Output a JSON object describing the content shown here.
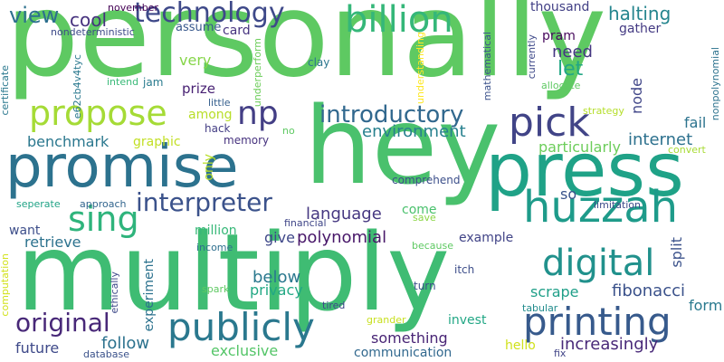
{
  "words": [
    {
      "key": "personally",
      "text": "personally",
      "color": "#5ec962"
    },
    {
      "key": "hey",
      "text": "hey",
      "color": "#4ac16d"
    },
    {
      "key": "multiply",
      "text": "multiply",
      "color": "#3fbc73"
    },
    {
      "key": "promise",
      "text": "promise",
      "color": "#2c728e"
    },
    {
      "key": "press",
      "text": "press",
      "color": "#1fa287"
    },
    {
      "key": "huzzah",
      "text": "huzzah",
      "color": "#1e9b8a"
    },
    {
      "key": "billion",
      "text": "billion",
      "color": "#35b779"
    },
    {
      "key": "technology",
      "text": "technology",
      "color": "#3e4989"
    },
    {
      "key": "propose",
      "text": "propose",
      "color": "#a5db36"
    },
    {
      "key": "np",
      "text": "np",
      "color": "#433e85"
    },
    {
      "key": "pick",
      "text": "pick",
      "color": "#414487"
    },
    {
      "key": "sing",
      "text": "sing",
      "color": "#2fb47c"
    },
    {
      "key": "introductory",
      "text": "introductory",
      "color": "#31688e"
    },
    {
      "key": "interpreter",
      "text": "interpreter",
      "color": "#3b528b"
    },
    {
      "key": "digital",
      "text": "digital",
      "color": "#21918c"
    },
    {
      "key": "printing",
      "text": "printing",
      "color": "#375a8c"
    },
    {
      "key": "publicly",
      "text": "publicly",
      "color": "#2a788e"
    },
    {
      "key": "original",
      "text": "original",
      "color": "#482878"
    },
    {
      "key": "view",
      "text": "view",
      "color": "#2d708e"
    },
    {
      "key": "cool",
      "text": "cool",
      "color": "#46327e"
    },
    {
      "key": "november",
      "text": "november",
      "color": "#440154"
    },
    {
      "key": "nondeterministic",
      "text": "nondeterministic",
      "color": "#3e4a89"
    },
    {
      "key": "thousand",
      "text": "thousand",
      "color": "#424086"
    },
    {
      "key": "halting",
      "text": "halting",
      "color": "#25858e"
    },
    {
      "key": "gather",
      "text": "gather",
      "color": "#443a83"
    },
    {
      "key": "assume",
      "text": "assume",
      "color": "#38588c"
    },
    {
      "key": "card",
      "text": "card",
      "color": "#46337f"
    },
    {
      "key": "need",
      "text": "need",
      "color": "#453781"
    },
    {
      "key": "pram",
      "text": "pram",
      "color": "#46085c"
    },
    {
      "key": "let",
      "text": "let",
      "color": "#22a785"
    },
    {
      "key": "very",
      "text": "very",
      "color": "#86d549"
    },
    {
      "key": "prize",
      "text": "prize",
      "color": "#482173"
    },
    {
      "key": "jam",
      "text": "jam",
      "color": "#297b8e"
    },
    {
      "key": "intend",
      "text": "intend",
      "color": "#38b977"
    },
    {
      "key": "little",
      "text": "little",
      "color": "#355f8d"
    },
    {
      "key": "clay",
      "text": "clay",
      "color": "#2a768e"
    },
    {
      "key": "among",
      "text": "among",
      "color": "#b8de29"
    },
    {
      "key": "hack",
      "text": "hack",
      "color": "#433d84"
    },
    {
      "key": "memory",
      "text": "memory",
      "color": "#46327e"
    },
    {
      "key": "benchmark",
      "text": "benchmark",
      "color": "#2a778e"
    },
    {
      "key": "graphic",
      "text": "graphic",
      "color": "#c2df23"
    },
    {
      "key": "environment",
      "text": "environment",
      "color": "#27808e"
    },
    {
      "key": "particularly",
      "text": "particularly",
      "color": "#6ccd5a"
    },
    {
      "key": "internet",
      "text": "internet",
      "color": "#2d718e"
    },
    {
      "key": "fail",
      "text": "fail",
      "color": "#2c738e"
    },
    {
      "key": "convert",
      "text": "convert",
      "color": "#a8db34"
    },
    {
      "key": "strategy",
      "text": "strategy",
      "color": "#b5de2b"
    },
    {
      "key": "allocate",
      "text": "allocate",
      "color": "#5ec962"
    },
    {
      "key": "language",
      "text": "language",
      "color": "#453781"
    },
    {
      "key": "comprehend",
      "text": "comprehend",
      "color": "#3c4f8a"
    },
    {
      "key": "come",
      "text": "come",
      "color": "#4ac16d"
    },
    {
      "key": "save",
      "text": "save",
      "color": "#8bd646"
    },
    {
      "key": "so",
      "text": "so",
      "color": "#3a538b"
    },
    {
      "key": "limitation",
      "text": "limitation",
      "color": "#3e4c8a"
    },
    {
      "key": "seperate",
      "text": "seperate",
      "color": "#20a386"
    },
    {
      "key": "approach",
      "text": "approach",
      "color": "#32658e"
    },
    {
      "key": "want",
      "text": "want",
      "color": "#3d4e8a"
    },
    {
      "key": "retrieve",
      "text": "retrieve",
      "color": "#2c728e"
    },
    {
      "key": "million",
      "text": "million",
      "color": "#37b878"
    },
    {
      "key": "give",
      "text": "give",
      "color": "#3f4889"
    },
    {
      "key": "polynomial",
      "text": "polynomial",
      "color": "#481769"
    },
    {
      "key": "financial",
      "text": "financial",
      "color": "#404688"
    },
    {
      "key": "example",
      "text": "example",
      "color": "#414487"
    },
    {
      "key": "because",
      "text": "because",
      "color": "#5ec962"
    },
    {
      "key": "income",
      "text": "income",
      "color": "#2e6f8e"
    },
    {
      "key": "below",
      "text": "below",
      "color": "#2a788e"
    },
    {
      "key": "privacy",
      "text": "privacy",
      "color": "#22a884"
    },
    {
      "key": "fibonacci",
      "text": "fibonacci",
      "color": "#3b528b"
    },
    {
      "key": "scrape",
      "text": "scrape",
      "color": "#1f9f88"
    },
    {
      "key": "form",
      "text": "form",
      "color": "#29798e"
    },
    {
      "key": "tabular",
      "text": "tabular",
      "color": "#228c8d"
    },
    {
      "key": "spark",
      "text": "spark",
      "color": "#5ec962"
    },
    {
      "key": "tired",
      "text": "tired",
      "color": "#3e4989"
    },
    {
      "key": "turn",
      "text": "turn",
      "color": "#3b528b"
    },
    {
      "key": "itch",
      "text": "itch",
      "color": "#3d4e8a"
    },
    {
      "key": "something",
      "text": "something",
      "color": "#482475"
    },
    {
      "key": "invest",
      "text": "invest",
      "color": "#22a785"
    },
    {
      "key": "increasingly",
      "text": "increasingly",
      "color": "#482878"
    },
    {
      "key": "follow",
      "text": "follow",
      "color": "#2c728e"
    },
    {
      "key": "future",
      "text": "future",
      "color": "#3e4989"
    },
    {
      "key": "exclusive",
      "text": "exclusive",
      "color": "#54c568"
    },
    {
      "key": "communication",
      "text": "communication",
      "color": "#31688e"
    },
    {
      "key": "hello",
      "text": "hello",
      "color": "#d0e11c"
    },
    {
      "key": "grander",
      "text": "grander",
      "color": "#c8e020"
    },
    {
      "key": "database",
      "text": "database",
      "color": "#3b528b"
    },
    {
      "key": "fix",
      "text": "fix",
      "color": "#414487"
    },
    {
      "key": "e62cb4v4tyc",
      "text": "e62cb4v4tyc",
      "color": "#2a788e"
    },
    {
      "key": "certificate",
      "text": "certificate",
      "color": "#2a788e"
    },
    {
      "key": "underperform",
      "text": "underperform",
      "color": "#6ccd5a"
    },
    {
      "key": "no",
      "text": "no",
      "color": "#5ec962"
    },
    {
      "key": "mathematical",
      "text": "mathematical",
      "color": "#3b528b"
    },
    {
      "key": "understanding",
      "text": "understanding",
      "color": "#fde725"
    },
    {
      "key": "currently",
      "text": "currently",
      "color": "#3e4989"
    },
    {
      "key": "nonpolynomial",
      "text": "nonpolynomial",
      "color": "#2c728e"
    },
    {
      "key": "node",
      "text": "node",
      "color": "#404688"
    },
    {
      "key": "split",
      "text": "split",
      "color": "#3b528b"
    },
    {
      "key": "only",
      "text": "only",
      "color": "#b8de29"
    },
    {
      "key": "computation",
      "text": "computation",
      "color": "#d2e21b"
    },
    {
      "key": "ethically",
      "text": "ethically",
      "color": "#3e4989"
    },
    {
      "key": "experiment",
      "text": "experiment",
      "color": "#2c728e"
    }
  ]
}
